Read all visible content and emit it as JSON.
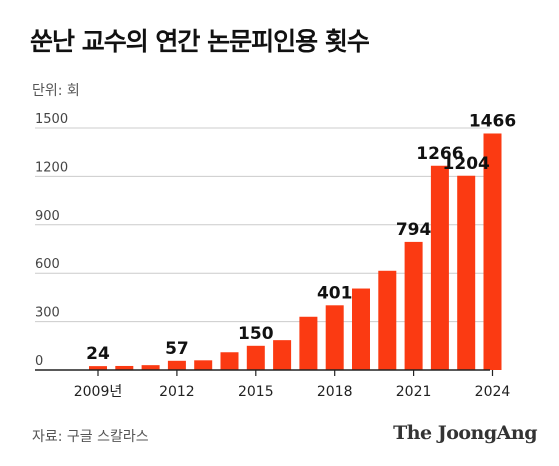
{
  "header": {
    "title": "쑨난 교수의 연간 논문피인용 횟수",
    "unit": "단위: 회"
  },
  "footer": {
    "source": "자료: 구글 스칼라스",
    "brand": "The JoongAng"
  },
  "colors": {
    "bar": "#fb3a12",
    "grid": "#cccccc",
    "axis": "#222222"
  },
  "chart_data": {
    "type": "bar",
    "categories": [
      "2009",
      "2010",
      "2011",
      "2012",
      "2013",
      "2014",
      "2015",
      "2016",
      "2017",
      "2018",
      "2019",
      "2020",
      "2021",
      "2022",
      "2023",
      "2024"
    ],
    "values": [
      24,
      25,
      30,
      57,
      60,
      110,
      150,
      185,
      330,
      401,
      505,
      615,
      794,
      1266,
      1204,
      1466
    ],
    "data_labels": [
      {
        "category": "2009",
        "text": "24"
      },
      {
        "category": "2012",
        "text": "57"
      },
      {
        "category": "2015",
        "text": "150"
      },
      {
        "category": "2018",
        "text": "401"
      },
      {
        "category": "2021",
        "text": "794"
      },
      {
        "category": "2022",
        "text": "1266"
      },
      {
        "category": "2023",
        "text": "1204"
      },
      {
        "category": "2024",
        "text": "1466"
      }
    ],
    "x_tick_labels": [
      {
        "category": "2009",
        "text": "2009년"
      },
      {
        "category": "2012",
        "text": "2012"
      },
      {
        "category": "2015",
        "text": "2015"
      },
      {
        "category": "2018",
        "text": "2018"
      },
      {
        "category": "2021",
        "text": "2021"
      },
      {
        "category": "2024",
        "text": "2024"
      }
    ],
    "y_ticks": [
      0,
      300,
      600,
      900,
      1200,
      1500
    ],
    "ylim": [
      0,
      1500
    ],
    "grid": true,
    "title": "쑨난 교수의 연간 논문피인용 횟수",
    "xlabel": "",
    "ylabel": ""
  }
}
